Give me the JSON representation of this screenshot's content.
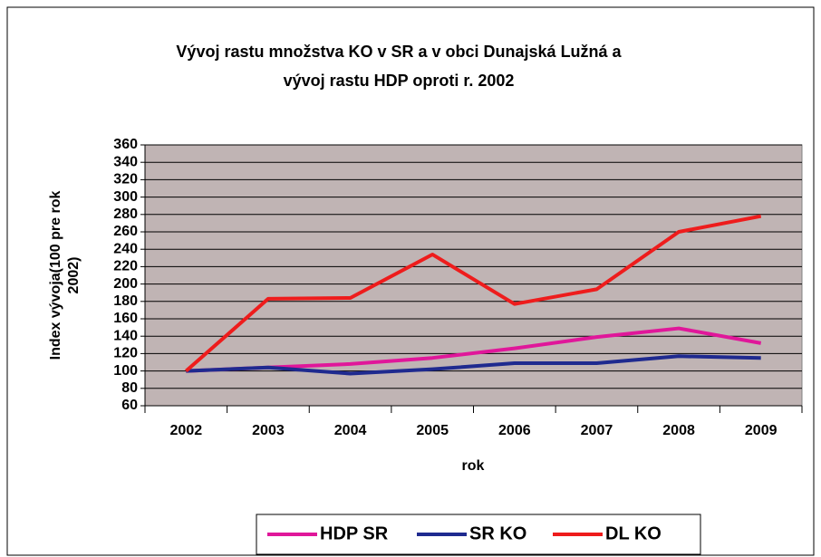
{
  "chart_data": {
    "type": "line",
    "title": [
      "Vývoj rastu množstva  KO v SR a v obci Dunajská Lužná a",
      "vývoj rastu HDP oproti r. 2002"
    ],
    "x_label": "rok",
    "y_label": [
      "Index vývoja(100 pre rok",
      "2002)"
    ],
    "categories": [
      "2002",
      "2003",
      "2004",
      "2005",
      "2006",
      "2007",
      "2008",
      "2009"
    ],
    "series": [
      {
        "name": "HDP SR",
        "color": "#e0179a",
        "values": [
          100,
          104,
          108,
          115,
          126,
          139,
          149,
          132
        ]
      },
      {
        "name": "SR KO",
        "color": "#1f2a8f",
        "values": [
          100,
          104,
          97,
          102,
          109,
          109,
          117,
          115
        ]
      },
      {
        "name": "DL KO",
        "color": "#ee1c1c",
        "values": [
          100,
          183,
          184,
          234,
          177,
          194,
          260,
          278
        ]
      }
    ],
    "ylim": [
      60,
      360
    ],
    "yticks": [
      60,
      80,
      100,
      120,
      140,
      160,
      180,
      200,
      220,
      240,
      260,
      280,
      300,
      320,
      340,
      360
    ],
    "grid": true,
    "legend": "bottom"
  }
}
